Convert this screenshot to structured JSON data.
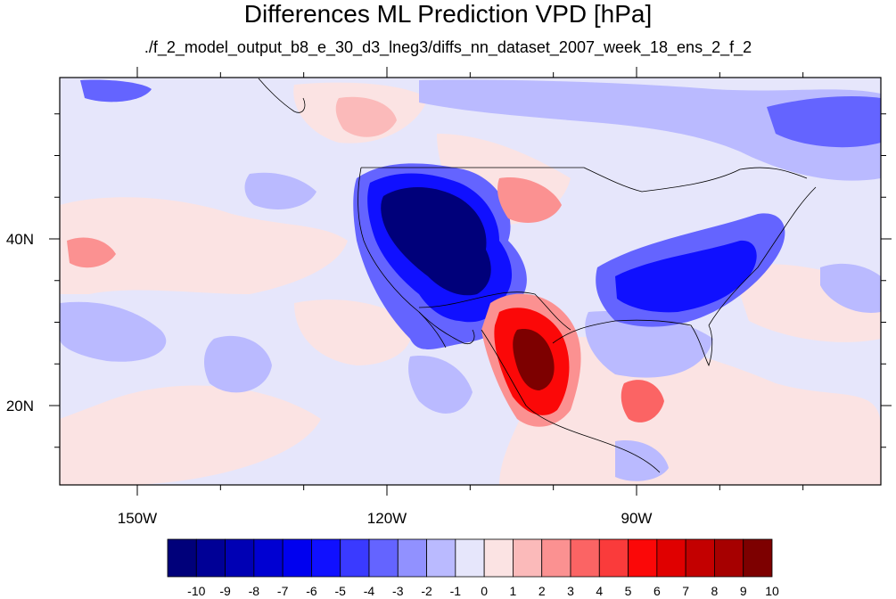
{
  "title": "Differences ML Prediction VPD [hPa]",
  "subtitle": "./f_2_model_output_b8_e_30_d3_lneg3/diffs_nn_dataset_2007_week_18_ens_2_f_2",
  "lat_ticks": [
    {
      "label": "40N",
      "value": 40
    },
    {
      "label": "20N",
      "value": 20
    }
  ],
  "lon_ticks": [
    {
      "label": "150W",
      "value": -150
    },
    {
      "label": "120W",
      "value": -120
    },
    {
      "label": "90W",
      "value": -90
    }
  ],
  "colorbar": {
    "labels": [
      "-10",
      "-9",
      "-8",
      "-7",
      "-6",
      "-5",
      "-4",
      "-3",
      "-2",
      "-1",
      "0",
      "1",
      "2",
      "3",
      "4",
      "5",
      "6",
      "7",
      "8",
      "9",
      "10"
    ],
    "colors": [
      "#00007a",
      "#000096",
      "#0000b4",
      "#0000d2",
      "#0000ef",
      "#1010ff",
      "#3a3aff",
      "#6464ff",
      "#9191ff",
      "#babaff",
      "#e6e6fb",
      "#fbe3e3",
      "#fbbaba",
      "#fb9191",
      "#fb6464",
      "#fa3b3b",
      "#fb0808",
      "#e00000",
      "#c30000",
      "#a60000",
      "#7d0000"
    ]
  },
  "colors": {
    "background_field": "#e6e6fb"
  }
}
